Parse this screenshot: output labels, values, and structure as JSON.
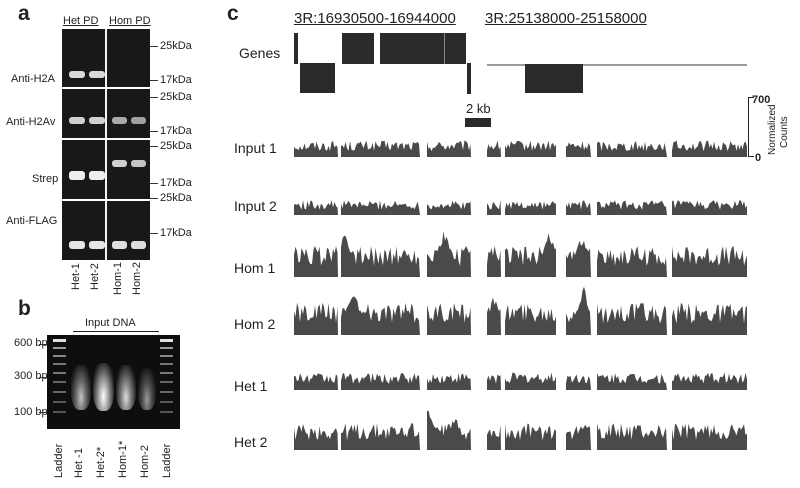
{
  "panel_a": {
    "letter": "a",
    "group_labels": [
      "Het PD",
      "Hom PD"
    ],
    "rows": [
      {
        "label": "Anti-H2A",
        "marker_top": "25kDa",
        "marker_bottom": "17kDa"
      },
      {
        "label": "Anti-H2Av",
        "marker_top": "25kDa",
        "marker_bottom": "17kDa"
      },
      {
        "label": "Strep",
        "marker_top": "25kDa",
        "marker_bottom": "17kDa"
      },
      {
        "label": "Anti-FLAG",
        "marker_top": "25kDa",
        "marker_bottom": "17kDa"
      }
    ],
    "lanes": [
      "Het-1",
      "Het-2",
      "Hom-1",
      "Hom-2"
    ]
  },
  "panel_b": {
    "letter": "b",
    "title": "Input DNA",
    "markers": [
      "600 bp",
      "300 bp",
      "100 bp"
    ],
    "lanes": [
      "Ladder",
      "Het -1",
      "Het-2*",
      "Hom-1*",
      "Hom-2",
      "Ladder"
    ]
  },
  "panel_c": {
    "letter": "c",
    "regions": [
      "3R:16930500-16944000",
      "3R:25138000-25158000"
    ],
    "genes_label": "Genes",
    "scale_bar": "2 kb",
    "axis_max": "700",
    "axis_min": "0",
    "axis_title_1": "Normalized",
    "axis_title_2": "Counts",
    "tracks": [
      "Input 1",
      "Input 2",
      "Hom 1",
      "Hom 2",
      "Het 1",
      "Het 2"
    ]
  }
}
